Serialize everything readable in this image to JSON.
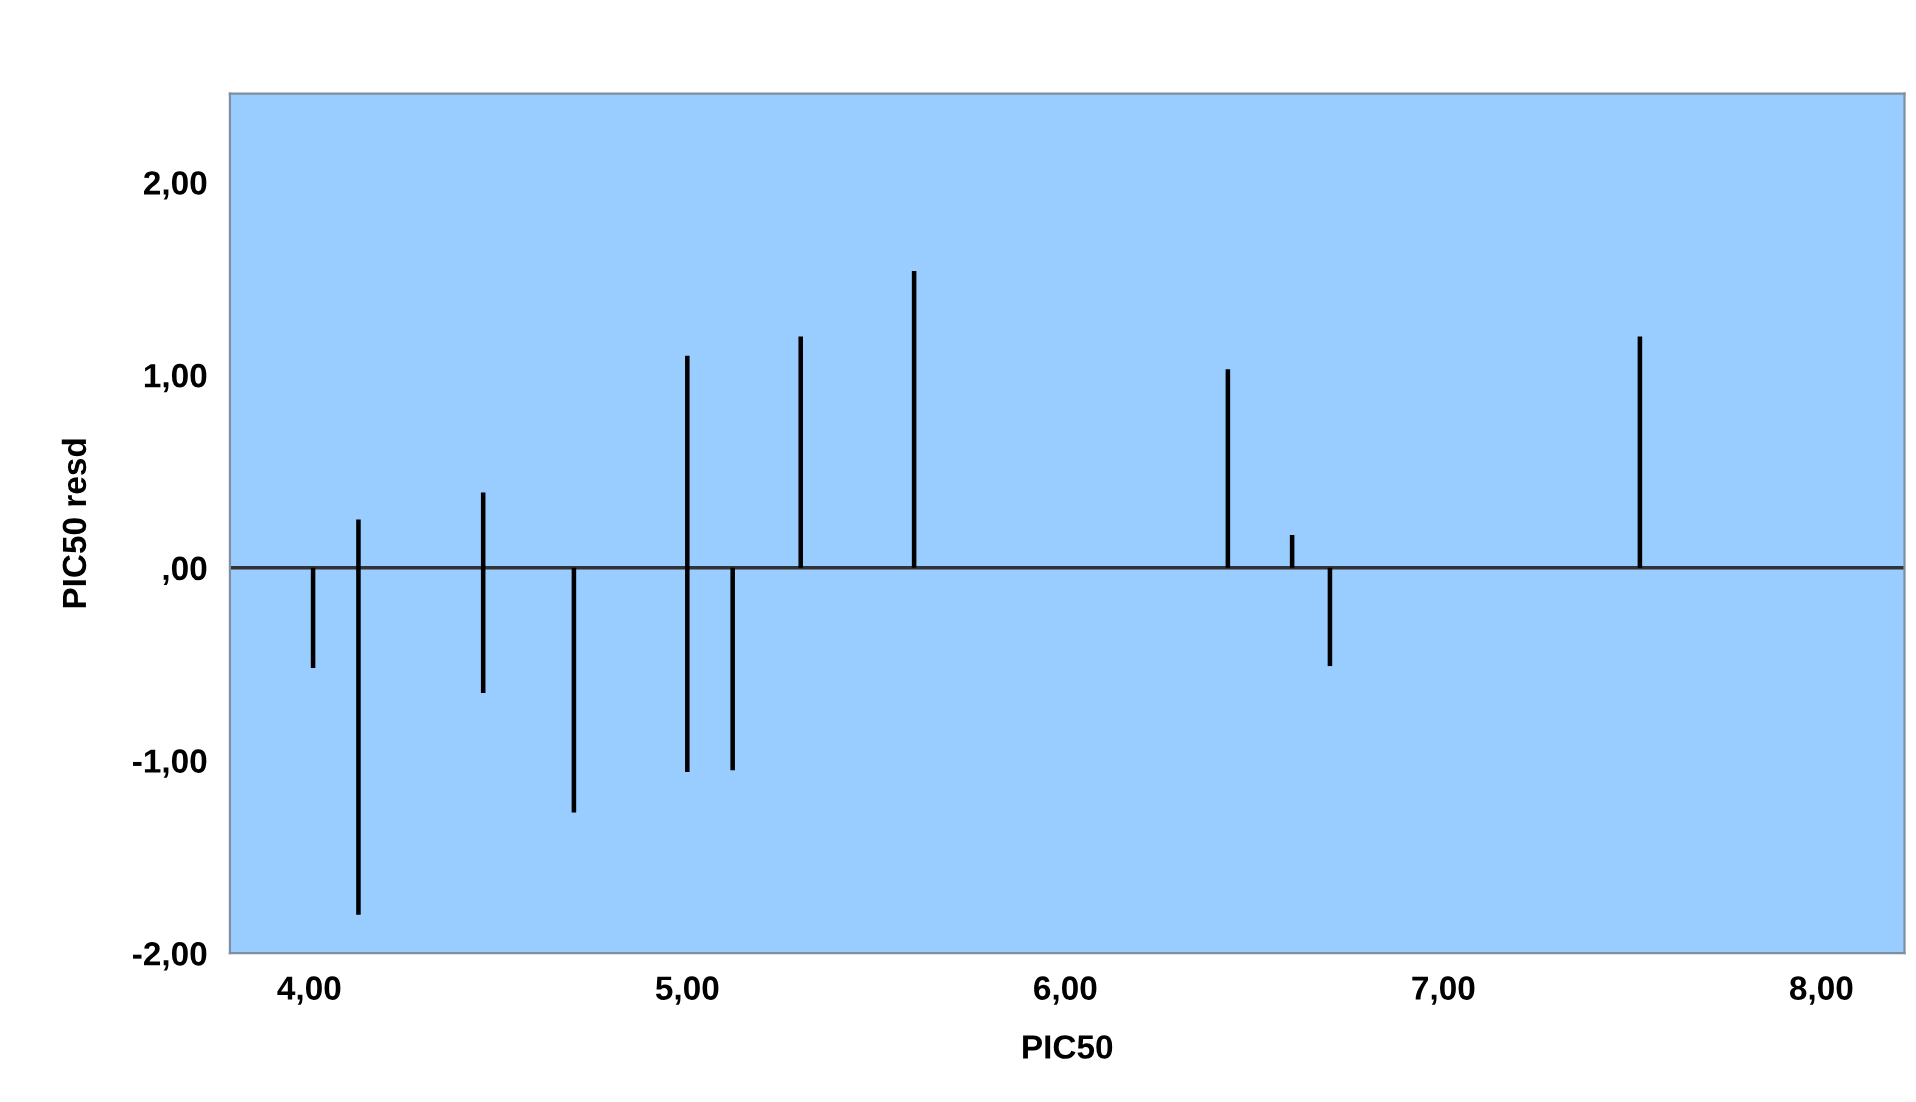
{
  "chart_data": {
    "type": "bar",
    "xlabel": "PIC50",
    "ylabel": "PIC50 resd",
    "x": [
      4.01,
      4.13,
      4.46,
      4.7,
      5.0,
      5.12,
      5.3,
      5.6,
      6.43,
      6.6,
      6.7,
      7.52
    ],
    "base": [
      0,
      -1.8,
      -0.65,
      0,
      -1.06,
      0,
      0,
      0,
      0,
      0,
      0,
      0
    ],
    "values": [
      -0.52,
      2.05,
      1.04,
      -1.27,
      2.16,
      -1.05,
      1.2,
      1.54,
      1.03,
      0.17,
      -0.51,
      1.2
    ],
    "color": "#000000",
    "xlim": [
      3.79,
      8.22
    ],
    "ylim": [
      -2.0,
      2.46
    ],
    "xticks": [
      {
        "value": 4,
        "label": "4,00"
      },
      {
        "value": 5,
        "label": "5,00"
      },
      {
        "value": 6,
        "label": "6,00"
      },
      {
        "value": 7,
        "label": "7,00"
      },
      {
        "value": 8,
        "label": "8,00"
      }
    ],
    "yticks": [
      {
        "value": -2,
        "label": "-2,00"
      },
      {
        "value": -1,
        "label": "-1,00"
      },
      {
        "value": 0,
        "label": ",00"
      },
      {
        "value": 1,
        "label": "1,00"
      },
      {
        "value": 2,
        "label": "2,00"
      }
    ],
    "ref_lines": [
      {
        "axis": "y",
        "value": 0,
        "label": null,
        "color": "#333333"
      }
    ],
    "grid": false,
    "legend": false
  }
}
